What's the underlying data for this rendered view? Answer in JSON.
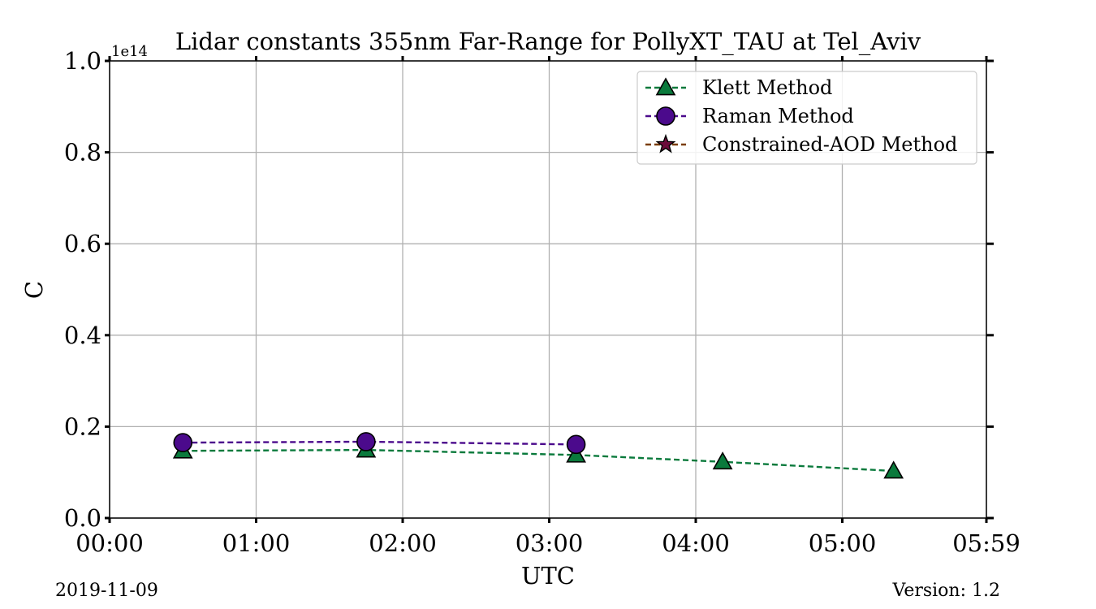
{
  "chart_data": {
    "type": "line",
    "title": "Lidar constants 355nm Far-Range for PollyXT_TAU at Tel_Aviv",
    "xlabel": "UTC",
    "ylabel": "C",
    "y_offset_label": "1e14",
    "xlim": [
      0,
      359
    ],
    "ylim": [
      0.0,
      1.0
    ],
    "x_ticks": [
      {
        "value": 0,
        "label": "00:00"
      },
      {
        "value": 60,
        "label": "01:00"
      },
      {
        "value": 120,
        "label": "02:00"
      },
      {
        "value": 180,
        "label": "03:00"
      },
      {
        "value": 240,
        "label": "04:00"
      },
      {
        "value": 300,
        "label": "05:00"
      },
      {
        "value": 359,
        "label": "05:59"
      }
    ],
    "y_ticks": [
      {
        "value": 0.0,
        "label": "0.0"
      },
      {
        "value": 0.2,
        "label": "0.2"
      },
      {
        "value": 0.4,
        "label": "0.4"
      },
      {
        "value": 0.6,
        "label": "0.6"
      },
      {
        "value": 0.8,
        "label": "0.8"
      },
      {
        "value": 1.0,
        "label": "1.0"
      }
    ],
    "grid": true,
    "legend_position": "top-right",
    "series": [
      {
        "name": "Klett Method",
        "color": "#0a7a3c",
        "marker": "triangle",
        "x": [
          "00:30",
          "01:45",
          "03:11",
          "04:11",
          "05:21"
        ],
        "y": [
          0.147,
          0.149,
          0.138,
          0.123,
          0.103
        ]
      },
      {
        "name": "Raman Method",
        "color": "#4b0a8c",
        "marker": "circle",
        "x": [
          "00:30",
          "01:45",
          "03:11"
        ],
        "y": [
          0.165,
          0.167,
          0.161
        ]
      },
      {
        "name": "Constrained-AOD Method",
        "color": "#7a3d00",
        "marker_color": "#6b0a3a",
        "marker": "star",
        "x": [],
        "y": []
      }
    ]
  },
  "footer": {
    "date": "2019-11-09",
    "version": "Version: 1.2"
  }
}
